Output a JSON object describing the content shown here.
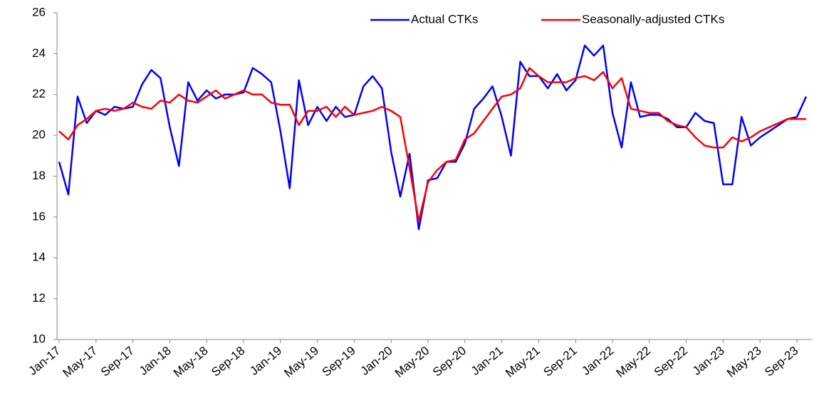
{
  "chart_data": {
    "type": "line",
    "categories": [
      "Jan-17",
      null,
      null,
      null,
      "May-17",
      null,
      null,
      null,
      "Sep-17",
      null,
      null,
      null,
      "Jan-18",
      null,
      null,
      null,
      "May-18",
      null,
      null,
      null,
      "Sep-18",
      null,
      null,
      null,
      "Jan-19",
      null,
      null,
      null,
      "May-19",
      null,
      null,
      null,
      "Sep-19",
      null,
      null,
      null,
      "Jan-20",
      null,
      null,
      null,
      "May-20",
      null,
      null,
      null,
      "Sep-20",
      null,
      null,
      null,
      "Jan-21",
      null,
      null,
      null,
      "May-21",
      null,
      null,
      null,
      "Sep-21",
      null,
      null,
      null,
      "Jan-22",
      null,
      null,
      null,
      "May-22",
      null,
      null,
      null,
      "Sep-22",
      null,
      null,
      null,
      "Jan-23",
      null,
      null,
      null,
      "May-23",
      null,
      null,
      null,
      "Sep-23",
      null
    ],
    "series": [
      {
        "name": "Actual CTKs",
        "color": "#0000ff",
        "values": [
          18.7,
          17.1,
          21.9,
          20.6,
          21.2,
          21.0,
          21.4,
          21.3,
          21.4,
          22.5,
          23.2,
          22.8,
          20.4,
          18.5,
          22.6,
          21.7,
          22.2,
          21.8,
          22.0,
          22.0,
          22.1,
          23.3,
          23.0,
          22.6,
          20.2,
          17.4,
          22.7,
          20.5,
          21.4,
          20.7,
          21.4,
          20.9,
          21.0,
          22.4,
          22.9,
          22.3,
          19.2,
          17.0,
          19.1,
          15.4,
          17.8,
          17.9,
          18.7,
          18.7,
          19.6,
          21.3,
          21.8,
          22.4,
          20.9,
          19.0,
          23.6,
          22.9,
          22.9,
          22.3,
          23.0,
          22.2,
          22.7,
          24.4,
          23.9,
          24.4,
          21.1,
          19.4,
          22.6,
          20.9,
          21.0,
          21.0,
          20.8,
          20.4,
          20.4,
          21.1,
          20.7,
          20.6,
          17.6,
          17.6,
          20.9,
          19.5,
          19.9,
          20.2,
          20.5,
          20.8,
          20.9,
          21.9
        ]
      },
      {
        "name": "Seasonally-adjusted CTKs",
        "color": "#ff0000",
        "values": [
          20.2,
          19.8,
          20.5,
          20.8,
          21.2,
          21.3,
          21.2,
          21.3,
          21.6,
          21.4,
          21.3,
          21.7,
          21.6,
          22.0,
          21.7,
          21.6,
          21.9,
          22.2,
          21.8,
          22.0,
          22.2,
          22.0,
          22.0,
          21.6,
          21.5,
          21.5,
          20.5,
          21.2,
          21.2,
          21.4,
          20.9,
          21.4,
          21.0,
          21.1,
          21.2,
          21.4,
          21.2,
          20.9,
          18.4,
          15.8,
          17.7,
          18.3,
          18.7,
          18.8,
          19.8,
          20.1,
          20.7,
          21.3,
          21.9,
          22.0,
          22.3,
          23.3,
          22.9,
          22.6,
          22.6,
          22.6,
          22.8,
          22.9,
          22.7,
          23.1,
          22.3,
          22.8,
          21.3,
          21.2,
          21.1,
          21.1,
          20.7,
          20.5,
          20.4,
          19.9,
          19.5,
          19.4,
          19.4,
          19.9,
          19.7,
          19.9,
          20.2,
          20.4,
          20.6,
          20.8,
          20.8,
          20.8
        ]
      }
    ],
    "ylim": [
      10,
      26
    ],
    "yticks": [
      10,
      12,
      14,
      16,
      18,
      20,
      22,
      24,
      26
    ],
    "grid": false,
    "legend": "top-right"
  }
}
